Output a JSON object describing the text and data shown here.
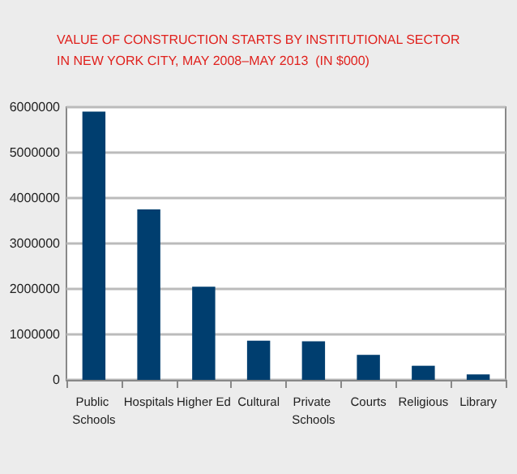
{
  "chart_data": {
    "type": "bar",
    "title": "VALUE OF CONSTRUCTION STARTS BY INSTITUTIONAL SECTOR\nIN NEW YORK CITY, MAY 2008–MAY 2013  (IN $000)",
    "categories": [
      "Public Schools",
      "Hospitals",
      "Higher Ed",
      "Cultural",
      "Private Schools",
      "Courts",
      "Religious",
      "Library"
    ],
    "values": [
      5900000,
      3750000,
      2050000,
      860000,
      850000,
      550000,
      310000,
      120000
    ],
    "color": "#003e6f",
    "ylim": [
      0,
      6000000
    ],
    "yticks": [
      0,
      1000000,
      2000000,
      3000000,
      4000000,
      5000000,
      6000000
    ],
    "grid": "y"
  }
}
